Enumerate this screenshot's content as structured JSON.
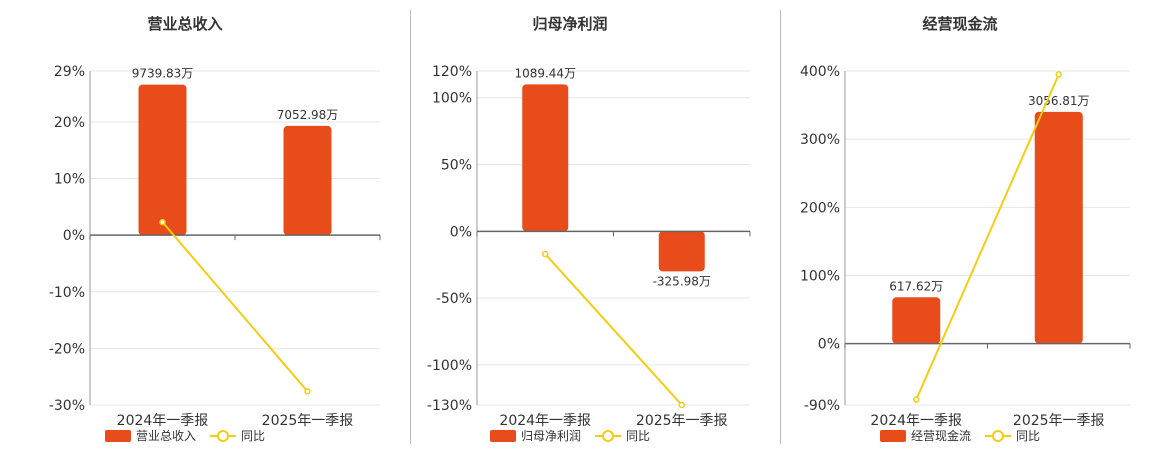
{
  "colors": {
    "bar": "#E84C1A",
    "line": "#F5CC14",
    "axis": "#666666",
    "grid": "#E6E6E6",
    "text": "#333333"
  },
  "charts": [
    {
      "title": "营业总收入",
      "legend": {
        "bar": "营业总收入",
        "line": "同比"
      },
      "chart_data": {
        "type": "bar",
        "categories": [
          "2024年一季报",
          "2025年一季报"
        ],
        "values": [
          26.6,
          19.3
        ],
        "value_labels": [
          "9739.83万",
          "7052.98万"
        ],
        "yoy": [
          2.3,
          -27.6
        ],
        "yticks": [
          29,
          20,
          10,
          0,
          -10,
          -20,
          -30
        ],
        "ytick_labels": [
          "29%",
          "20%",
          "10%",
          "0%",
          "-10%",
          "-20%",
          "-30%"
        ],
        "ylim": [
          -30,
          29
        ]
      }
    },
    {
      "title": "归母净利润",
      "legend": {
        "bar": "归母净利润",
        "line": "同比"
      },
      "chart_data": {
        "type": "bar",
        "categories": [
          "2024年一季报",
          "2025年一季报"
        ],
        "values": [
          110,
          -30
        ],
        "value_labels": [
          "1089.44万",
          "-325.98万"
        ],
        "yoy": [
          -17,
          -130
        ],
        "yticks": [
          120,
          100,
          50,
          0,
          -50,
          -100,
          -130
        ],
        "ytick_labels": [
          "120%",
          "100%",
          "50%",
          "0%",
          "-50%",
          "-100%",
          "-130%"
        ],
        "ylim": [
          -130,
          120
        ]
      }
    },
    {
      "title": "经营现金流",
      "legend": {
        "bar": "经营现金流",
        "line": "同比"
      },
      "chart_data": {
        "type": "bar",
        "categories": [
          "2024年一季报",
          "2025年一季报"
        ],
        "values": [
          68,
          340
        ],
        "value_labels": [
          "617.62万",
          "3056.81万"
        ],
        "yoy": [
          -82,
          395
        ],
        "yticks": [
          400,
          300,
          200,
          100,
          0,
          -90
        ],
        "ytick_labels": [
          "400%",
          "300%",
          "200%",
          "100%",
          "0%",
          "-90%"
        ],
        "ylim": [
          -90,
          400
        ]
      }
    }
  ]
}
